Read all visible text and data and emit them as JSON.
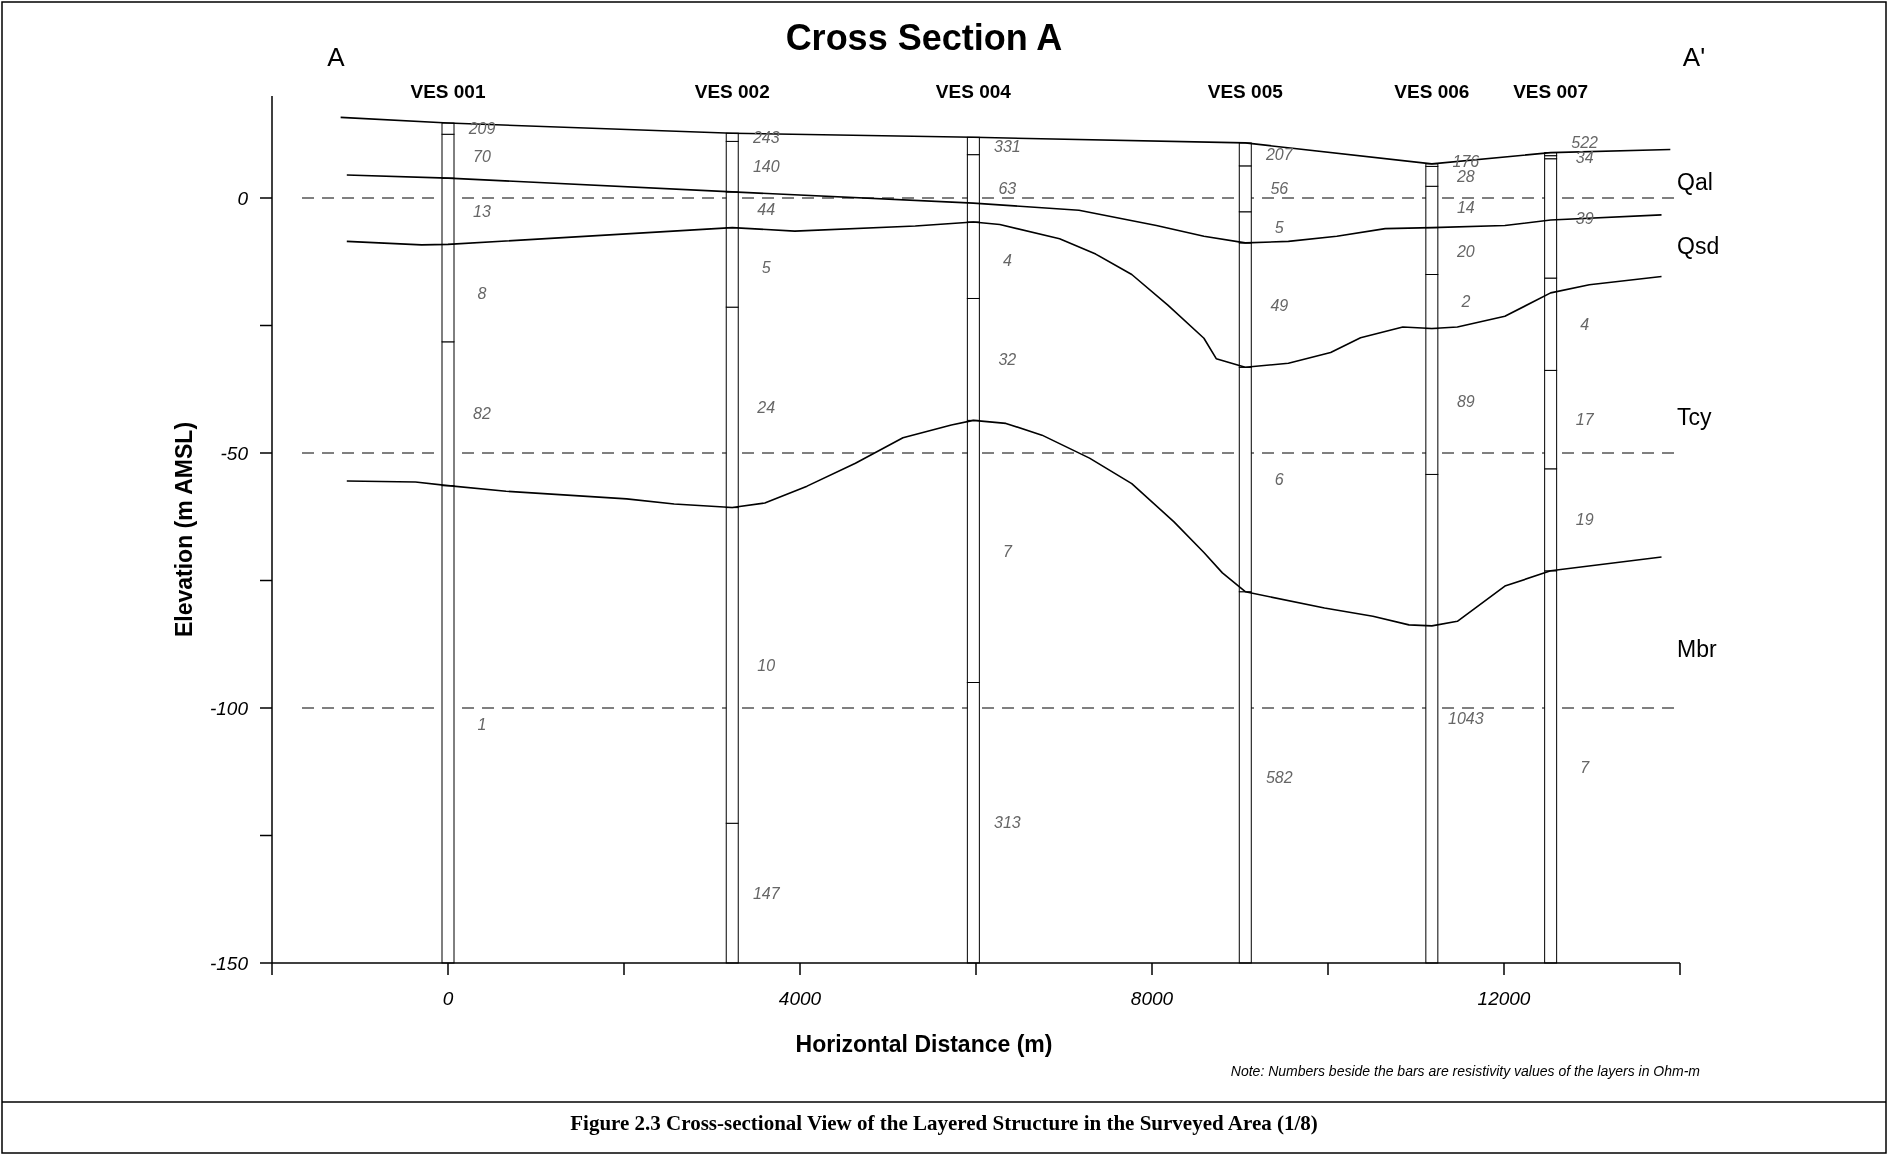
{
  "chart_data": {
    "type": "line",
    "title": "Cross Section A",
    "xlabel": "Horizontal Distance (m)",
    "ylabel": "Elevation (m AMSL)",
    "xlim": [
      -2000,
      14000
    ],
    "xticks": [
      {
        "value": -2000,
        "label": null
      },
      0,
      {
        "value": 2000,
        "label": null
      },
      4000,
      {
        "value": 6000,
        "label": null
      },
      8000,
      {
        "value": 10000,
        "label": null
      },
      12000,
      {
        "value": 14000,
        "label": null
      }
    ],
    "ylim": [
      -150,
      20
    ],
    "yticks": [
      -150,
      {
        "value": -125,
        "label": null
      },
      -100,
      {
        "value": -75,
        "label": null
      },
      -50,
      {
        "value": -25,
        "label": null
      },
      0
    ],
    "series": [
      {
        "color": "#000000",
        "x": [
          -1220,
          0,
          3230,
          5970,
          9060,
          11180,
          12530,
          13890
        ],
        "values": [
          15.8,
          14.7,
          12.7,
          11.9,
          10.8,
          6.7,
          8.9,
          9.5
        ]
      },
      {
        "color": "#000000",
        "x": [
          -1150,
          0,
          3230,
          5970,
          7170,
          8050,
          8590,
          9060,
          9550,
          10100,
          10650,
          11180,
          12010,
          12530,
          13790
        ],
        "values": [
          4.5,
          3.9,
          1.2,
          -1.0,
          -2.4,
          -5.4,
          -7.5,
          -8.8,
          -8.5,
          -7.5,
          -6.0,
          -5.8,
          -5.4,
          -4.3,
          -3.3
        ]
      },
      {
        "color": "#000000",
        "x": [
          -1150,
          -300,
          0,
          3230,
          3940,
          5310,
          5970,
          6270,
          6950,
          7360,
          7770,
          8180,
          8590,
          8730,
          9060,
          9550,
          10030,
          10370,
          10850,
          11180,
          11470,
          12010,
          12530,
          12970,
          13790
        ],
        "values": [
          -8.5,
          -9.2,
          -9.1,
          -5.8,
          -6.5,
          -5.5,
          -4.7,
          -5.2,
          -8,
          -11,
          -15,
          -21,
          -27.5,
          -31.5,
          -33.2,
          -32.4,
          -30.3,
          -27.4,
          -25.3,
          -25.6,
          -25.3,
          -23.2,
          -18.6,
          -17.0,
          -15.4
        ]
      },
      {
        "color": "#000000",
        "x": [
          -1150,
          -370,
          0,
          660,
          2030,
          2570,
          3230,
          3600,
          4080,
          4630,
          5170,
          5720,
          5970,
          6340,
          6750,
          7290,
          7770,
          8250,
          8590,
          8800,
          9060,
          9960,
          10510,
          10920,
          11180,
          11470,
          12010,
          12530,
          13790
        ],
        "values": [
          -55.5,
          -55.7,
          -56.4,
          -57.5,
          -59,
          -60,
          -60.7,
          -59.8,
          -56.5,
          -52,
          -47,
          -44.5,
          -43.6,
          -44.2,
          -46.5,
          -51,
          -56,
          -63.5,
          -69.5,
          -73.5,
          -77.2,
          -80.4,
          -82.0,
          -83.7,
          -83.9,
          -83.0,
          -76.1,
          -73.1,
          -70.4
        ]
      },
      {
        "type": "bar",
        "color": "#ffffff",
        "x": [
          0,
          3230,
          5970,
          9060,
          11180,
          12530
        ],
        "base": [
          -150,
          -150,
          -150,
          -150,
          -150,
          -150
        ],
        "values": [
          93.6,
          27.4,
          55,
          72.8,
          95.8,
          76.9
        ]
      },
      {
        "type": "bar",
        "color": "#ffffff",
        "x": [
          0,
          3230,
          5970,
          9060,
          11180,
          12530
        ],
        "base": [
          -56.4,
          -122.6,
          -95,
          -77.2,
          -54.2,
          -73.1
        ],
        "values": [
          28.2,
          61.9,
          51.4,
          44.0,
          28.6,
          20.0
        ]
      },
      {
        "type": "bar",
        "color": "#ffffff",
        "x": [
          0,
          3230,
          5970,
          9060,
          11180,
          12530
        ],
        "base": [
          -28.2,
          -60.7,
          -43.6,
          -33.2,
          -25.6,
          -53.1
        ],
        "values": [
          19.1,
          39.3,
          23.9,
          24.4,
          10.6,
          19.3
        ]
      },
      {
        "type": "bar",
        "color": "#ffffff",
        "x": [
          0,
          3230,
          5970,
          9060,
          11180,
          12530
        ],
        "base": [
          -9.1,
          -21.4,
          -19.7,
          -8.8,
          -15.0,
          -33.8
        ],
        "values": [
          13.0,
          15.6,
          15.0,
          6.1,
          9.2,
          18.1
        ]
      },
      {
        "type": "bar",
        "color": "#ffffff",
        "x": [
          0,
          3230,
          5970,
          9060,
          11180,
          12530
        ],
        "base": [
          3.9,
          -5.8,
          -4.7,
          -2.7,
          -5.8,
          -15.7
        ],
        "values": [
          8.6,
          7.0,
          13.2,
          9.0,
          8.1,
          23.4
        ]
      },
      {
        "type": "bar",
        "color": "#ffffff",
        "x": [
          0,
          3230,
          5970,
          9060,
          11180,
          12530
        ],
        "base": [
          12.5,
          1.2,
          8.5,
          6.3,
          2.3,
          7.7
        ],
        "values": [
          2.2,
          9.9,
          3.4,
          4.5,
          3.9,
          0.6
        ]
      },
      {
        "type": "bar",
        "color": "#ffffff",
        "x": [
          3230,
          11180,
          12530
        ],
        "base": [
          11.1,
          6.2,
          8.3
        ],
        "values": [
          1.6,
          0.5,
          0.6
        ]
      }
    ],
    "ref_lines": [
      {
        "axis": "y",
        "value": 0,
        "line_style": "dashed",
        "color": "#000000"
      },
      {
        "axis": "y",
        "value": -50,
        "line_style": "dashed",
        "color": "#000000"
      },
      {
        "axis": "y",
        "value": -100,
        "line_style": "dashed",
        "color": "#000000"
      }
    ],
    "annotations": [
      "A",
      "A'",
      "Note: Numbers beside the bars are resistivity values of the layers in Ohm-m",
      "Figure 2.3 Cross-sectional View of the Layered Structure in the Surveyed Area (1/8)",
      "VES 001",
      "VES 002",
      "VES 004",
      "VES 005",
      "VES 006",
      "VES 007",
      "Qal",
      "Qsd",
      "Tcy",
      "Mbr",
      "209",
      "70",
      "13",
      "8",
      "82",
      "1",
      "243",
      "140",
      "44",
      "5",
      "24",
      "10",
      "147",
      "331",
      "63",
      "4",
      "32",
      "7",
      "313",
      "207",
      "56",
      "5",
      "49",
      "6",
      "582",
      "176",
      "28",
      "14",
      "20",
      "2",
      "89",
      "1043",
      "522",
      "34",
      "39",
      "4",
      "17",
      "19",
      "7"
    ]
  }
}
